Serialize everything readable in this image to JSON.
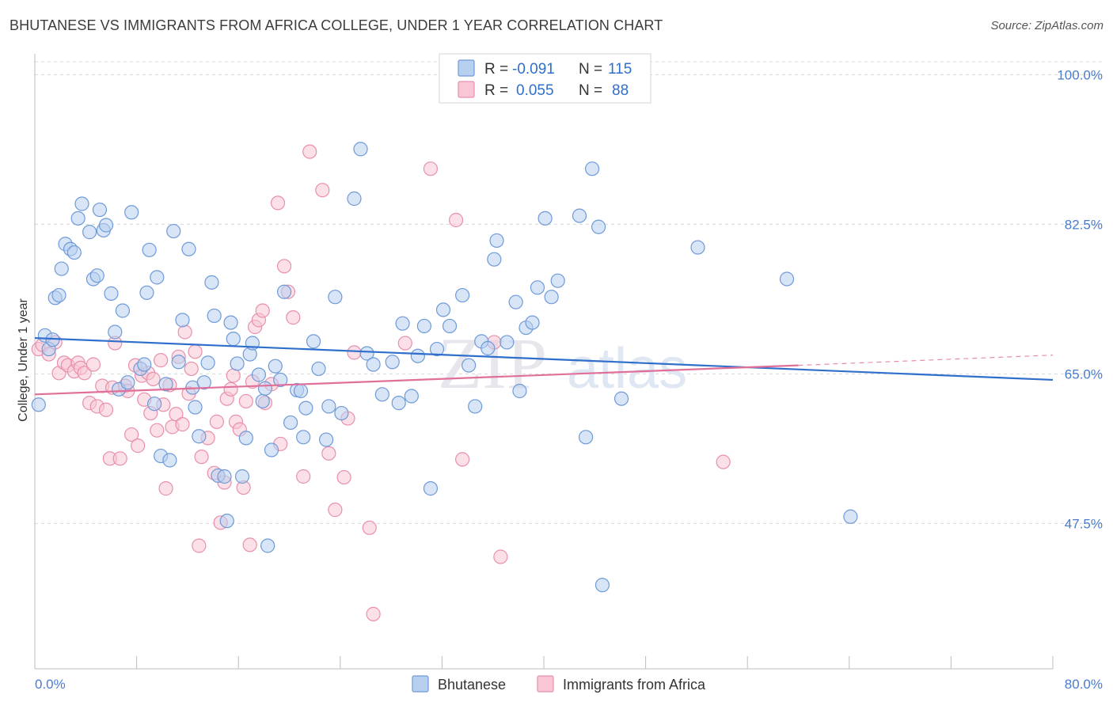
{
  "title": "BHUTANESE VS IMMIGRANTS FROM AFRICA COLLEGE, UNDER 1 YEAR CORRELATION CHART",
  "source": "Source: ZipAtlas.com",
  "watermark": "ZIPatlas",
  "colors": {
    "blue_fill": "#b8d0f0",
    "blue_stroke": "#6f9ad8",
    "blue_line": "#2f6fcc",
    "pink_fill": "#f8c6d4",
    "pink_stroke": "#e890ac",
    "pink_line": "#e0709a",
    "grid": "#d8d8d8",
    "axis_label": "#4a7ccc"
  },
  "legend": {
    "rows": [
      {
        "r_label": "R =",
        "r_value": "-0.091",
        "n_label": "N =",
        "n_value": "115"
      },
      {
        "r_label": "R =",
        "r_value": "0.055",
        "n_label": "N =",
        "n_value": "88"
      }
    ]
  },
  "bottom_legend": [
    "Bhutanese",
    "Immigrants from Africa"
  ],
  "chart_data": {
    "type": "scatter",
    "title": "BHUTANESE VS IMMIGRANTS FROM AFRICA COLLEGE, UNDER 1 YEAR CORRELATION CHART",
    "xlabel": "",
    "ylabel": "College, Under 1 year",
    "xlim": [
      0,
      80
    ],
    "ylim": [
      30.5,
      103
    ],
    "x_tick_labels": [
      "0.0%",
      "80.0%"
    ],
    "y_ticks": [
      47.5,
      65.0,
      82.5,
      100.0
    ],
    "y_tick_labels": [
      "47.5%",
      "65.0%",
      "82.5%",
      "100.0%"
    ],
    "grid": true,
    "legend_position": "top-center",
    "series": [
      {
        "name": "Bhutanese",
        "color": "#b8d0f0",
        "trend": {
          "x": [
            0,
            80
          ],
          "y": [
            69.2,
            64.3
          ]
        },
        "points": [
          [
            0.3,
            61.4
          ],
          [
            0.8,
            69.5
          ],
          [
            1.1,
            67.9
          ],
          [
            1.4,
            69.0
          ],
          [
            1.6,
            73.9
          ],
          [
            1.9,
            74.2
          ],
          [
            2.1,
            77.3
          ],
          [
            2.4,
            80.2
          ],
          [
            2.8,
            79.6
          ],
          [
            3.1,
            79.2
          ],
          [
            3.4,
            83.2
          ],
          [
            3.7,
            84.9
          ],
          [
            4.3,
            81.6
          ],
          [
            4.6,
            76.1
          ],
          [
            4.9,
            76.5
          ],
          [
            5.1,
            84.2
          ],
          [
            5.4,
            81.8
          ],
          [
            5.6,
            82.4
          ],
          [
            6.0,
            74.4
          ],
          [
            6.3,
            69.9
          ],
          [
            6.6,
            63.2
          ],
          [
            6.9,
            72.4
          ],
          [
            7.3,
            64.0
          ],
          [
            7.6,
            83.9
          ],
          [
            8.3,
            65.6
          ],
          [
            8.6,
            66.1
          ],
          [
            8.8,
            74.5
          ],
          [
            9.0,
            79.5
          ],
          [
            9.4,
            61.5
          ],
          [
            9.6,
            76.3
          ],
          [
            9.9,
            55.4
          ],
          [
            10.3,
            63.8
          ],
          [
            10.6,
            54.9
          ],
          [
            10.9,
            81.7
          ],
          [
            11.3,
            66.4
          ],
          [
            11.6,
            71.3
          ],
          [
            12.1,
            79.6
          ],
          [
            12.4,
            63.4
          ],
          [
            12.6,
            61.1
          ],
          [
            12.9,
            57.7
          ],
          [
            13.3,
            64.0
          ],
          [
            13.6,
            66.3
          ],
          [
            13.9,
            75.7
          ],
          [
            14.1,
            71.8
          ],
          [
            14.4,
            53.1
          ],
          [
            14.9,
            53.0
          ],
          [
            15.1,
            47.8
          ],
          [
            15.4,
            71.0
          ],
          [
            15.6,
            69.1
          ],
          [
            15.9,
            66.2
          ],
          [
            16.3,
            53.0
          ],
          [
            16.6,
            57.5
          ],
          [
            16.9,
            67.3
          ],
          [
            17.1,
            68.6
          ],
          [
            17.6,
            64.9
          ],
          [
            17.9,
            61.8
          ],
          [
            18.1,
            63.3
          ],
          [
            18.3,
            44.9
          ],
          [
            18.6,
            56.1
          ],
          [
            18.9,
            65.9
          ],
          [
            19.3,
            64.3
          ],
          [
            19.6,
            74.6
          ],
          [
            20.1,
            59.3
          ],
          [
            20.6,
            63.1
          ],
          [
            20.9,
            63.0
          ],
          [
            21.1,
            57.6
          ],
          [
            21.3,
            61.0
          ],
          [
            21.9,
            68.8
          ],
          [
            22.3,
            65.6
          ],
          [
            22.9,
            57.3
          ],
          [
            23.1,
            61.2
          ],
          [
            23.6,
            74.0
          ],
          [
            24.1,
            60.4
          ],
          [
            25.1,
            85.5
          ],
          [
            25.6,
            91.3
          ],
          [
            26.1,
            67.4
          ],
          [
            26.6,
            66.1
          ],
          [
            27.3,
            62.6
          ],
          [
            28.1,
            66.4
          ],
          [
            28.6,
            61.6
          ],
          [
            28.9,
            70.9
          ],
          [
            29.6,
            62.4
          ],
          [
            30.1,
            67.1
          ],
          [
            30.6,
            70.6
          ],
          [
            31.1,
            51.6
          ],
          [
            31.6,
            67.9
          ],
          [
            32.1,
            72.5
          ],
          [
            32.6,
            70.6
          ],
          [
            33.6,
            74.2
          ],
          [
            34.1,
            66.0
          ],
          [
            34.6,
            61.2
          ],
          [
            35.1,
            68.8
          ],
          [
            35.6,
            68.0
          ],
          [
            36.1,
            78.4
          ],
          [
            36.3,
            80.6
          ],
          [
            37.1,
            68.7
          ],
          [
            37.8,
            73.4
          ],
          [
            38.1,
            63.0
          ],
          [
            38.6,
            70.4
          ],
          [
            39.1,
            71.0
          ],
          [
            39.5,
            75.1
          ],
          [
            40.1,
            83.2
          ],
          [
            40.6,
            74.0
          ],
          [
            41.1,
            75.9
          ],
          [
            42.8,
            83.5
          ],
          [
            43.3,
            57.6
          ],
          [
            43.8,
            89.0
          ],
          [
            44.3,
            82.2
          ],
          [
            44.6,
            40.3
          ],
          [
            46.1,
            62.1
          ],
          [
            52.1,
            79.8
          ],
          [
            59.1,
            76.1
          ],
          [
            64.1,
            48.3
          ]
        ]
      },
      {
        "name": "Immigrants from Africa",
        "color": "#f8c6d4",
        "trend": {
          "x": [
            0,
            60
          ],
          "y": [
            62.6,
            66.0
          ]
        },
        "trend_dashed": {
          "x": [
            60,
            80
          ],
          "y": [
            66.0,
            67.2
          ]
        },
        "points": [
          [
            0.3,
            67.9
          ],
          [
            0.6,
            68.4
          ],
          [
            1.1,
            67.3
          ],
          [
            1.6,
            68.7
          ],
          [
            1.9,
            65.1
          ],
          [
            2.3,
            66.3
          ],
          [
            2.6,
            66.0
          ],
          [
            3.1,
            65.3
          ],
          [
            3.4,
            66.3
          ],
          [
            3.6,
            65.7
          ],
          [
            3.9,
            65.1
          ],
          [
            4.3,
            61.6
          ],
          [
            4.6,
            66.1
          ],
          [
            4.9,
            61.2
          ],
          [
            5.3,
            63.6
          ],
          [
            5.6,
            60.8
          ],
          [
            5.9,
            55.1
          ],
          [
            6.1,
            63.4
          ],
          [
            6.3,
            68.6
          ],
          [
            6.7,
            55.1
          ],
          [
            7.1,
            63.6
          ],
          [
            7.3,
            63.0
          ],
          [
            7.6,
            57.9
          ],
          [
            7.9,
            66.0
          ],
          [
            8.1,
            56.6
          ],
          [
            8.4,
            64.8
          ],
          [
            8.6,
            62.0
          ],
          [
            8.9,
            65.1
          ],
          [
            9.1,
            60.4
          ],
          [
            9.3,
            64.4
          ],
          [
            9.6,
            58.4
          ],
          [
            9.9,
            66.6
          ],
          [
            10.1,
            61.4
          ],
          [
            10.3,
            51.6
          ],
          [
            10.6,
            63.7
          ],
          [
            10.8,
            58.8
          ],
          [
            11.1,
            60.3
          ],
          [
            11.3,
            67.0
          ],
          [
            11.6,
            59.1
          ],
          [
            11.8,
            69.9
          ],
          [
            12.1,
            62.7
          ],
          [
            12.3,
            65.6
          ],
          [
            12.6,
            67.6
          ],
          [
            12.9,
            44.9
          ],
          [
            13.1,
            55.3
          ],
          [
            13.6,
            57.5
          ],
          [
            14.1,
            53.4
          ],
          [
            14.3,
            59.4
          ],
          [
            14.6,
            47.6
          ],
          [
            14.9,
            52.3
          ],
          [
            15.1,
            62.1
          ],
          [
            15.4,
            63.2
          ],
          [
            15.6,
            64.8
          ],
          [
            15.8,
            59.4
          ],
          [
            16.1,
            58.5
          ],
          [
            16.4,
            51.7
          ],
          [
            16.6,
            61.8
          ],
          [
            16.9,
            45.0
          ],
          [
            17.1,
            64.1
          ],
          [
            17.3,
            70.5
          ],
          [
            17.6,
            71.3
          ],
          [
            17.9,
            72.4
          ],
          [
            18.1,
            61.6
          ],
          [
            18.6,
            63.8
          ],
          [
            19.1,
            85.0
          ],
          [
            19.3,
            56.8
          ],
          [
            19.6,
            77.6
          ],
          [
            19.9,
            74.6
          ],
          [
            20.3,
            71.6
          ],
          [
            21.1,
            53.0
          ],
          [
            21.6,
            91.0
          ],
          [
            22.6,
            86.5
          ],
          [
            23.1,
            55.7
          ],
          [
            23.6,
            49.1
          ],
          [
            24.3,
            52.9
          ],
          [
            24.6,
            59.8
          ],
          [
            25.1,
            67.5
          ],
          [
            26.3,
            47.0
          ],
          [
            26.6,
            36.9
          ],
          [
            29.1,
            68.6
          ],
          [
            31.1,
            89.0
          ],
          [
            33.1,
            83.0
          ],
          [
            33.6,
            55.0
          ],
          [
            36.1,
            68.7
          ],
          [
            36.6,
            43.6
          ],
          [
            54.1,
            54.7
          ]
        ]
      }
    ]
  }
}
